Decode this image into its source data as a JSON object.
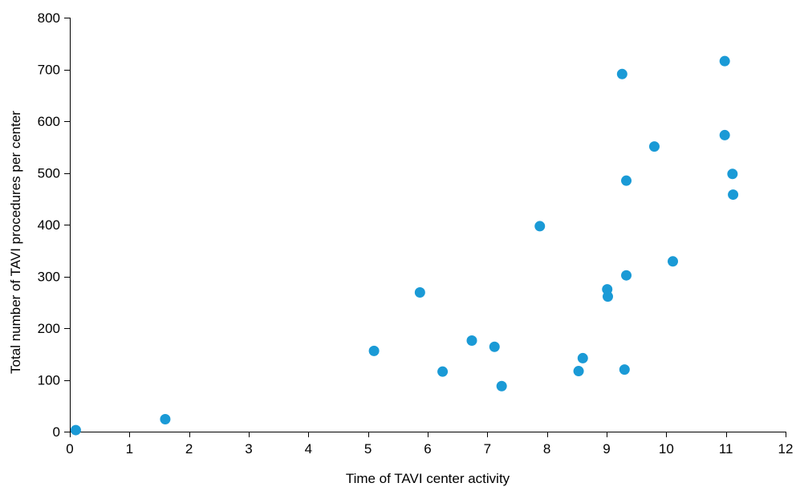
{
  "chart_data": {
    "type": "scatter",
    "title": "",
    "xlabel": "Time of TAVI center activity",
    "ylabel": "Total number of TAVI procedures per center",
    "xlim": [
      0,
      12
    ],
    "ylim": [
      0,
      800
    ],
    "x_ticks": [
      0,
      1,
      2,
      3,
      4,
      5,
      6,
      7,
      8,
      9,
      10,
      11,
      12
    ],
    "y_ticks": [
      0,
      100,
      200,
      300,
      400,
      500,
      600,
      700,
      800
    ],
    "x_tick_labels": [
      "0",
      "1",
      "2",
      "3",
      "4",
      "5",
      "6",
      "7",
      "8",
      "9",
      "10",
      "11",
      "12"
    ],
    "y_tick_labels": [
      "0",
      "100",
      "200",
      "300",
      "400",
      "500",
      "600",
      "700",
      "800"
    ],
    "grid": false,
    "legend": "none",
    "marker_color": "#1a9ad6",
    "series": [
      {
        "points": [
          {
            "x": 0.1,
            "y": 3
          },
          {
            "x": 1.6,
            "y": 24
          },
          {
            "x": 5.1,
            "y": 156
          },
          {
            "x": 5.87,
            "y": 269
          },
          {
            "x": 6.25,
            "y": 116
          },
          {
            "x": 6.74,
            "y": 176
          },
          {
            "x": 7.12,
            "y": 164
          },
          {
            "x": 7.24,
            "y": 88
          },
          {
            "x": 7.88,
            "y": 397
          },
          {
            "x": 8.53,
            "y": 117
          },
          {
            "x": 8.6,
            "y": 142
          },
          {
            "x": 9.01,
            "y": 275
          },
          {
            "x": 9.02,
            "y": 261
          },
          {
            "x": 9.26,
            "y": 691
          },
          {
            "x": 9.3,
            "y": 120
          },
          {
            "x": 9.33,
            "y": 485
          },
          {
            "x": 9.33,
            "y": 302
          },
          {
            "x": 9.8,
            "y": 551
          },
          {
            "x": 10.11,
            "y": 329
          },
          {
            "x": 10.98,
            "y": 716
          },
          {
            "x": 10.98,
            "y": 573
          },
          {
            "x": 11.11,
            "y": 498
          },
          {
            "x": 11.12,
            "y": 458
          }
        ]
      }
    ]
  }
}
